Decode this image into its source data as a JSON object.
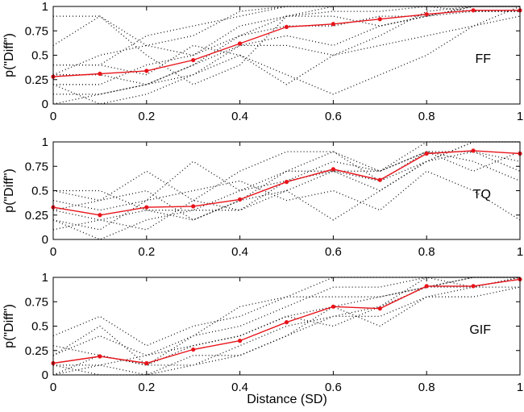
{
  "colors": {
    "mean": "#e8141b",
    "individual": "#111111",
    "axes": "#000000"
  },
  "chart_data": {
    "type": "line",
    "xlabel": "Distance (SD)",
    "ylabel": "p(\"Diff\")",
    "xlim": [
      0,
      1
    ],
    "ylim": [
      0,
      1
    ],
    "xticks": [
      0,
      0.2,
      0.4,
      0.6,
      0.8,
      1
    ],
    "xtick_labels": [
      "0",
      "0.2",
      "0.4",
      "0.6",
      "0.8",
      "1"
    ],
    "yticks": [
      0,
      0.25,
      0.5,
      0.75,
      1
    ],
    "ytick_labels": [
      "0",
      "0.25",
      "0.5",
      "0.75",
      "1"
    ],
    "x": [
      0,
      0.1,
      0.2,
      0.3,
      0.4,
      0.5,
      0.6,
      0.7,
      0.8,
      0.9,
      1.0
    ],
    "panels": [
      {
        "label": "FF",
        "mean": [
          0.28,
          0.31,
          0.34,
          0.45,
          0.62,
          0.79,
          0.82,
          0.87,
          0.92,
          0.96,
          0.96
        ],
        "individual": [
          [
            0.9,
            0.9,
            0.5,
            0.2,
            0.4,
            0.9,
            1.0,
            1.0,
            1.0,
            1.0,
            1.0
          ],
          [
            0.6,
            0.9,
            0.6,
            0.7,
            0.95,
            1.0,
            1.0,
            1.0,
            1.0,
            1.0,
            1.0
          ],
          [
            0.4,
            0.4,
            0.7,
            0.8,
            0.9,
            1.0,
            1.0,
            1.0,
            1.0,
            1.0,
            1.0
          ],
          [
            0.2,
            0.0,
            0.1,
            0.3,
            0.5,
            0.3,
            0.1,
            0.3,
            0.5,
            0.8,
            0.9
          ],
          [
            0.1,
            0.1,
            0.2,
            0.4,
            0.6,
            0.6,
            0.5,
            0.7,
            0.95,
            1.0,
            1.0
          ],
          [
            0.3,
            0.3,
            0.2,
            0.3,
            0.6,
            0.7,
            0.6,
            0.8,
            0.9,
            1.0,
            1.0
          ],
          [
            0.0,
            0.1,
            0.2,
            0.4,
            0.7,
            0.8,
            0.8,
            0.9,
            0.9,
            0.95,
            0.95
          ],
          [
            0.4,
            0.4,
            0.3,
            0.6,
            0.5,
            0.2,
            0.5,
            0.6,
            0.7,
            0.8,
            1.0
          ],
          [
            0.2,
            0.2,
            0.4,
            0.5,
            0.7,
            0.9,
            0.9,
            0.8,
            0.9,
            1.0,
            1.0
          ],
          [
            0.3,
            0.5,
            0.6,
            0.5,
            0.8,
            0.9,
            0.95,
            0.95,
            1.0,
            0.95,
            0.95
          ]
        ]
      },
      {
        "label": "TQ",
        "mean": [
          0.33,
          0.25,
          0.33,
          0.34,
          0.41,
          0.59,
          0.72,
          0.61,
          0.88,
          0.91,
          0.88
        ],
        "individual": [
          [
            0.5,
            0.4,
            0.7,
            0.4,
            0.7,
            0.9,
            0.9,
            0.7,
            0.9,
            0.8,
            0.6
          ],
          [
            0.3,
            0.2,
            0.1,
            0.4,
            0.3,
            0.5,
            0.2,
            0.5,
            0.8,
            1.0,
            1.0
          ],
          [
            0.2,
            0.0,
            0.2,
            0.3,
            0.3,
            0.6,
            0.7,
            0.5,
            0.8,
            0.9,
            0.8
          ],
          [
            0.4,
            0.3,
            0.4,
            0.8,
            0.5,
            0.7,
            0.9,
            0.6,
            0.9,
            0.7,
            0.9
          ],
          [
            0.1,
            0.2,
            0.3,
            0.2,
            0.4,
            0.5,
            0.7,
            0.7,
            1.0,
            1.0,
            1.0
          ],
          [
            0.5,
            0.5,
            0.3,
            0.3,
            0.5,
            0.6,
            0.8,
            0.7,
            0.9,
            0.9,
            0.7
          ],
          [
            0.2,
            0.1,
            0.4,
            0.5,
            0.6,
            0.4,
            0.5,
            0.3,
            0.7,
            0.5,
            0.2
          ],
          [
            0.3,
            0.4,
            0.5,
            0.2,
            0.4,
            0.7,
            0.7,
            0.6,
            0.8,
            1.0,
            1.0
          ]
        ]
      },
      {
        "label": "GIF",
        "mean": [
          0.12,
          0.19,
          0.12,
          0.26,
          0.35,
          0.54,
          0.7,
          0.68,
          0.91,
          0.91,
          0.98
        ],
        "individual": [
          [
            0.4,
            0.6,
            0.3,
            0.5,
            0.6,
            0.8,
            1.0,
            1.0,
            1.0,
            1.0,
            1.0
          ],
          [
            0.2,
            0.4,
            0.2,
            0.4,
            0.7,
            0.8,
            0.8,
            0.8,
            0.9,
            0.9,
            1.0
          ],
          [
            0.0,
            0.1,
            0.0,
            0.2,
            0.2,
            0.4,
            0.7,
            0.5,
            0.8,
            0.8,
            0.9
          ],
          [
            0.1,
            0.1,
            0.2,
            0.3,
            0.4,
            0.6,
            0.5,
            0.7,
            0.9,
            1.0,
            1.0
          ],
          [
            0.3,
            0.2,
            0.1,
            0.1,
            0.3,
            0.5,
            0.6,
            0.7,
            1.0,
            1.0,
            1.0
          ],
          [
            0.2,
            0.5,
            0.1,
            0.4,
            0.5,
            0.7,
            0.9,
            0.9,
            1.0,
            0.9,
            1.0
          ],
          [
            0.1,
            0.0,
            0.0,
            0.1,
            0.2,
            0.4,
            0.6,
            0.6,
            0.8,
            0.9,
            0.9
          ],
          [
            0.0,
            0.2,
            0.1,
            0.3,
            0.4,
            0.6,
            0.7,
            0.8,
            0.9,
            1.0,
            1.0
          ]
        ]
      }
    ]
  }
}
